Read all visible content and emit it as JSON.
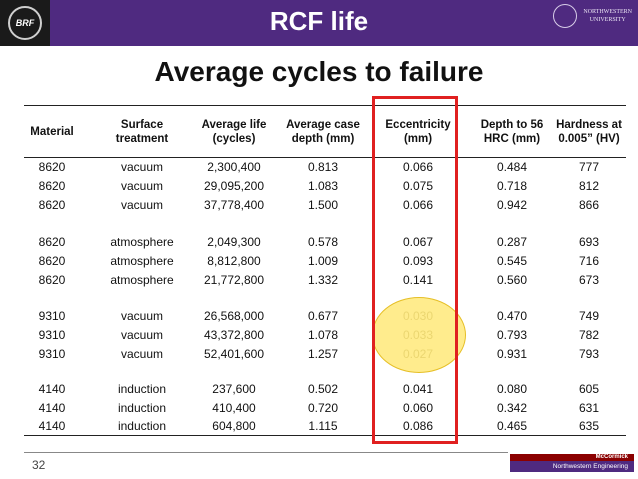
{
  "header": {
    "title": "RCF life"
  },
  "logos": {
    "left_logo": "BRF",
    "right_logo_line1": "NORTHWESTERN",
    "right_logo_line2": "UNIVERSITY"
  },
  "subtitle": "Average cycles to failure",
  "table": {
    "headers": [
      "Material",
      "Surface treatment",
      "Average life (cycles)",
      "Average case depth (mm)",
      "Eccentricity (mm)",
      "Depth to 56 HRC (mm)",
      "Hardness at 0.005” (HV)"
    ],
    "rows": [
      [
        "8620",
        "vacuum",
        "2,300,400",
        "0.813",
        "0.066",
        "0.484",
        "777"
      ],
      [
        "8620",
        "vacuum",
        "29,095,200",
        "1.083",
        "0.075",
        "0.718",
        "812"
      ],
      [
        "8620",
        "vacuum",
        "37,778,400",
        "1.500",
        "0.066",
        "0.942",
        "866"
      ],
      [
        "8620",
        "atmosphere",
        "2,049,300",
        "0.578",
        "0.067",
        "0.287",
        "693"
      ],
      [
        "8620",
        "atmosphere",
        "8,812,800",
        "1.009",
        "0.093",
        "0.545",
        "716"
      ],
      [
        "8620",
        "atmosphere",
        "21,772,800",
        "1.332",
        "0.141",
        "0.560",
        "673"
      ],
      [
        "9310",
        "vacuum",
        "26,568,000",
        "0.677",
        "0.030",
        "0.470",
        "749"
      ],
      [
        "9310",
        "vacuum",
        "43,372,800",
        "1.078",
        "0.033",
        "0.793",
        "782"
      ],
      [
        "9310",
        "vacuum",
        "52,401,600",
        "1.257",
        "0.027",
        "0.931",
        "793"
      ],
      [
        "4140",
        "induction",
        "237,600",
        "0.502",
        "0.041",
        "0.080",
        "605"
      ],
      [
        "4140",
        "induction",
        "410,400",
        "0.720",
        "0.060",
        "0.342",
        "631"
      ],
      [
        "4140",
        "induction",
        "604,800",
        "1.115",
        "0.086",
        "0.465",
        "635"
      ]
    ]
  },
  "footer": {
    "page_number": "32",
    "brand_top": "McCormick",
    "brand_bottom": "Northwestern Engineering"
  },
  "colors": {
    "header_bar": "#4f2a80",
    "highlight": "#ffe97a",
    "red_box": "#e02020"
  }
}
